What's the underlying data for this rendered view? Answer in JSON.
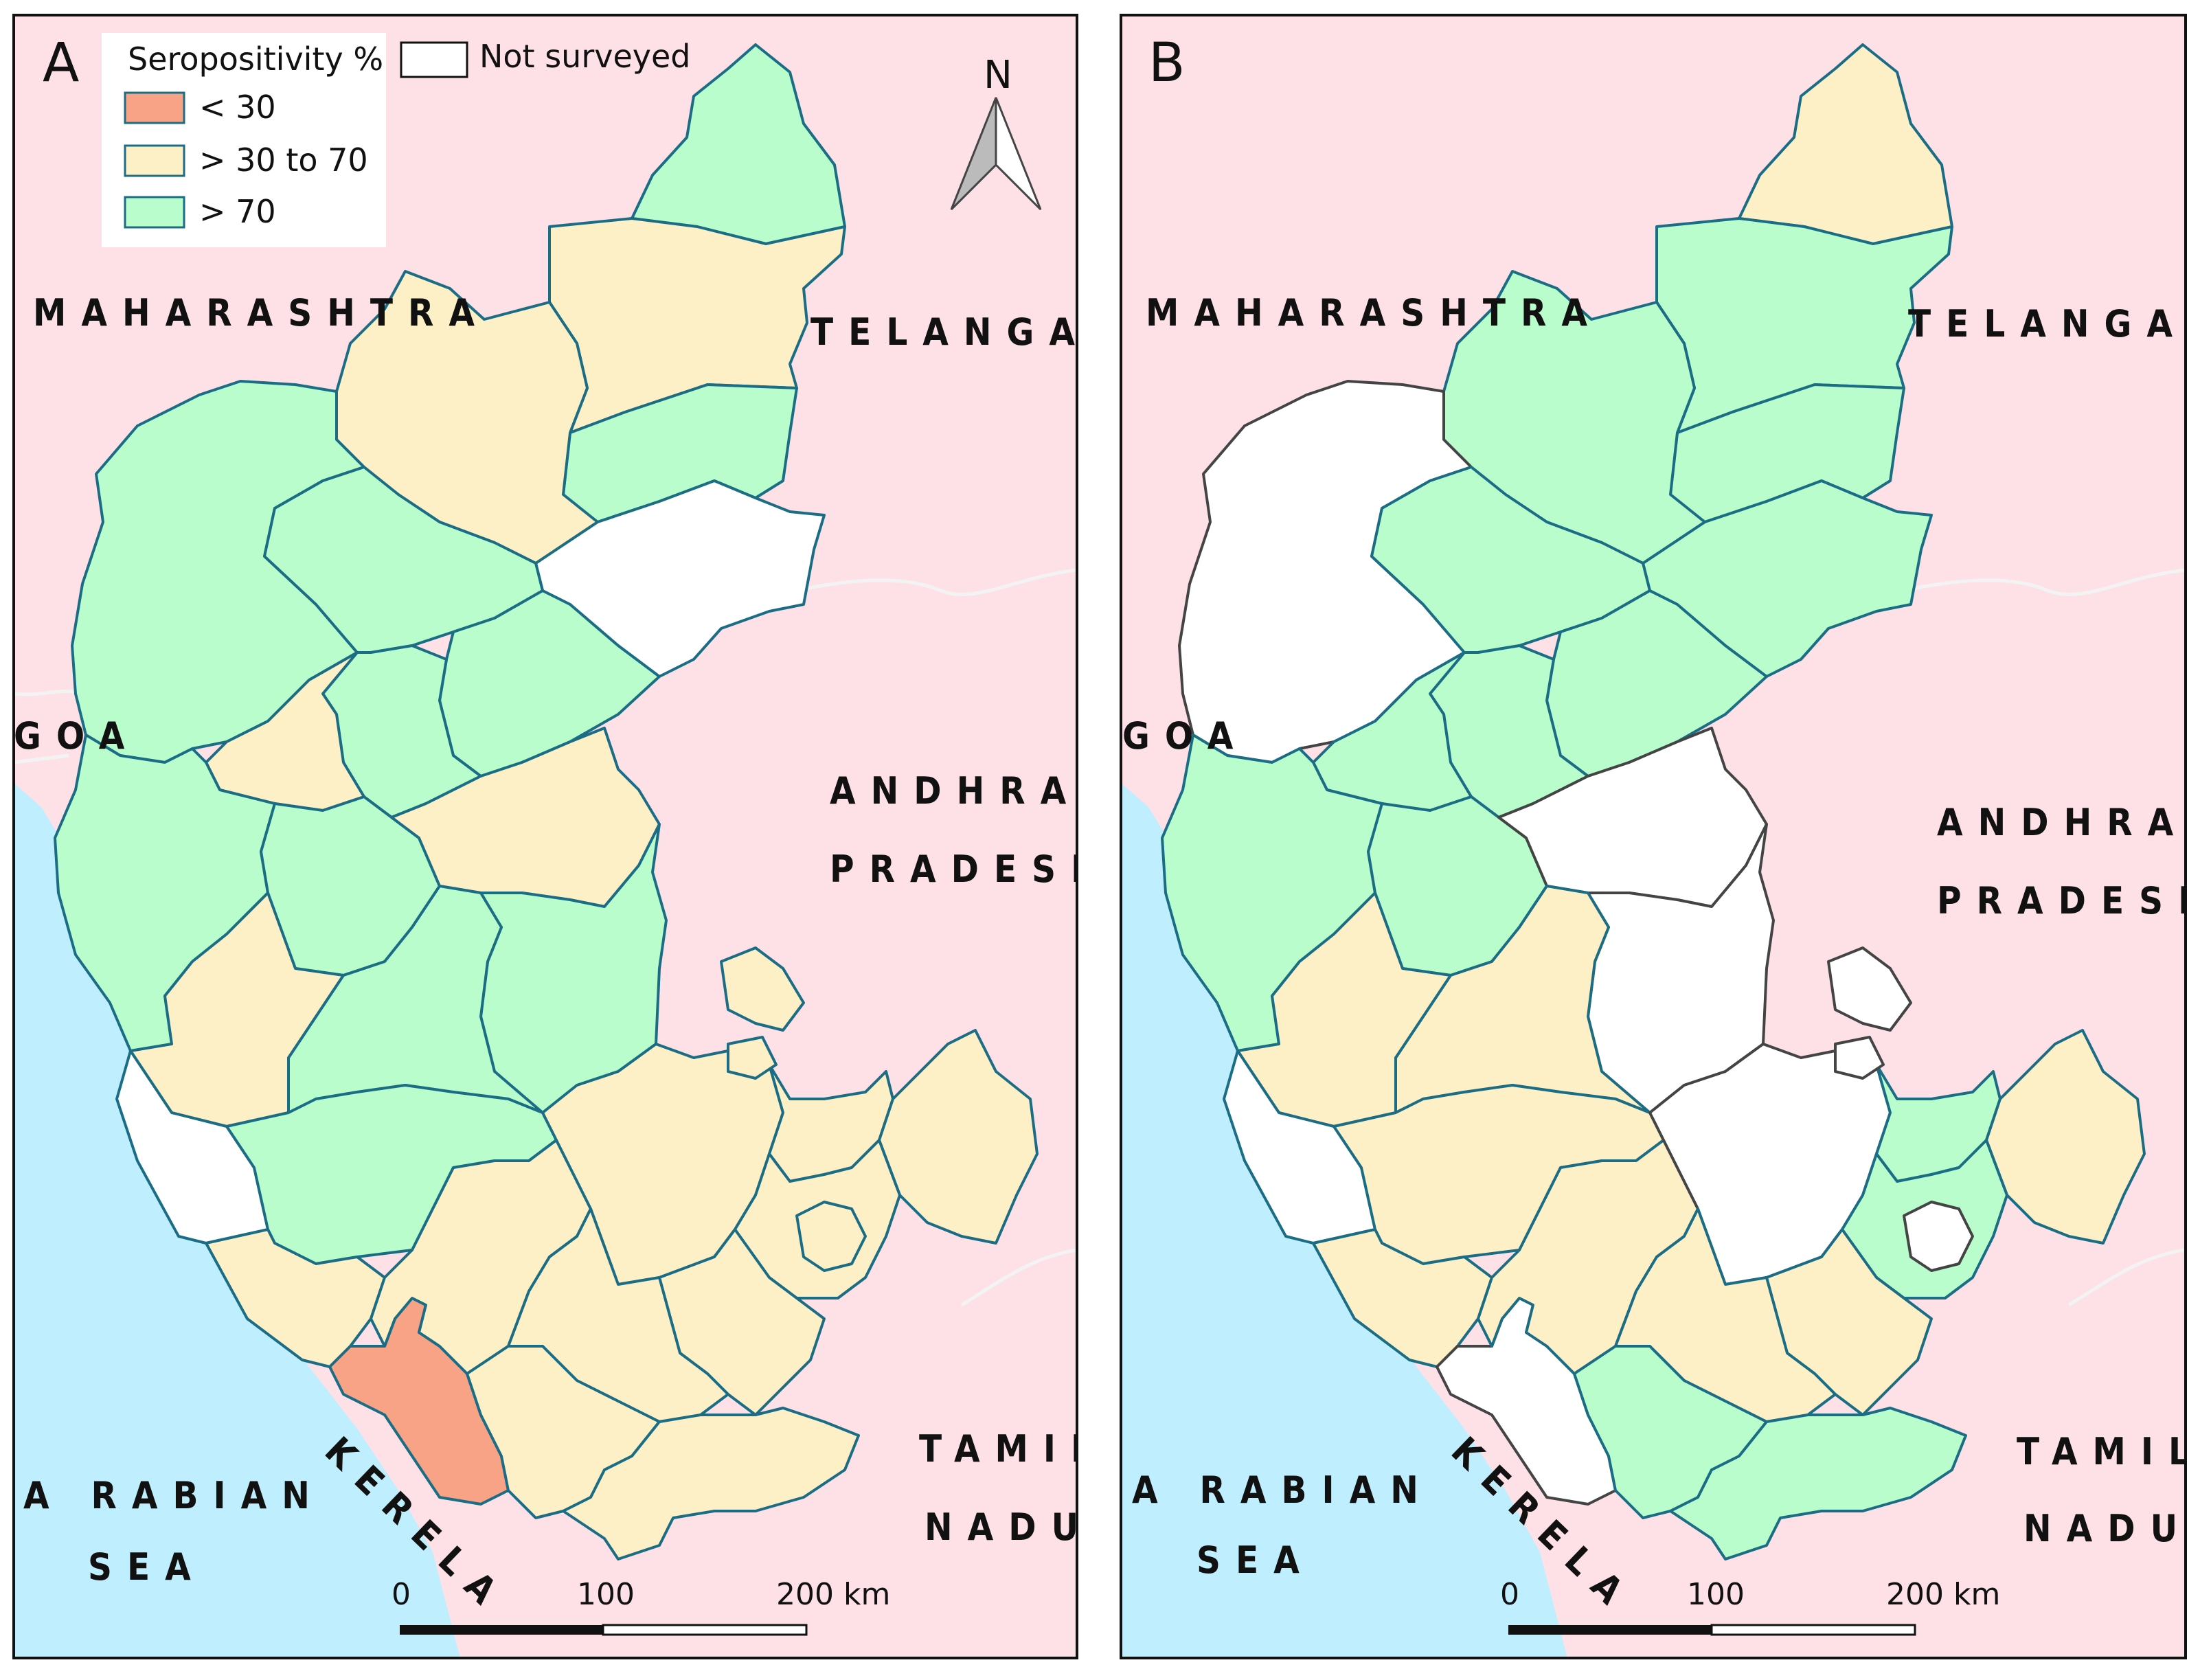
{
  "colors": {
    "land": "#fde1e7",
    "sea": "#bfeefe",
    "low": "#f8a286",
    "mid": "#fdf0c6",
    "high": "#b9fdcc",
    "not_surveyed": "#ffffff",
    "district_border": "#1b6d86",
    "border_gray": "#4d4d4d"
  },
  "legend": {
    "title": "Seropositivity %",
    "items": [
      {
        "label": "<   30",
        "color": "#f8a286"
      },
      {
        "label": "> 30 to 70",
        "color": "#fdf0c6"
      },
      {
        "label": "> 70",
        "color": "#b9fdcc"
      }
    ],
    "not_surveyed_label": "Not surveyed"
  },
  "panels": [
    {
      "letter": "A",
      "labels": {
        "maharashtra": "MAHARASHTRA",
        "telangana": "TELANGANA",
        "goa": "GOA",
        "andhra_1": "ANDHRA",
        "andhra_2": "PRADESH",
        "tamil_1": "TAMIL",
        "tamil_2": "NADU",
        "arabian_1": "A RABIAN",
        "arabian_2": "SEA",
        "kerela": "KERELA"
      },
      "scale": {
        "t0": "0",
        "t1": "100",
        "t2": "200 km"
      },
      "north": "N"
    },
    {
      "letter": "B",
      "labels": {
        "maharashtra": "MAHARASHTRA",
        "telangana": "TELANGANA",
        "goa": "GOA",
        "andhra_1": "ANDHRA",
        "andhra_2": "PRADESH",
        "tamil_1": "TAMIL",
        "tamil_2": "NADU",
        "arabian_1": "A RABIAN",
        "arabian_2": "SEA",
        "kerela": "KERELA"
      },
      "scale": {
        "t0": "0",
        "t1": "100",
        "t2": "200 km"
      }
    }
  ]
}
